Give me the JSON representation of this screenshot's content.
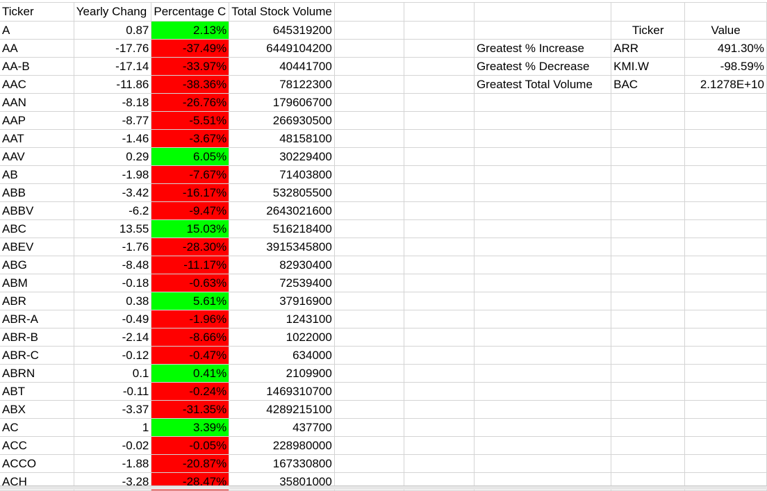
{
  "headers": {
    "ticker": "Ticker",
    "yearly_change": "Yearly Chang",
    "percent_change": "Percentage C",
    "total_volume": "Total Stock Volume"
  },
  "rows": [
    {
      "ticker": "A",
      "yearly_change": "0.87",
      "percent_change": "2.13%",
      "volume": "645319200",
      "sign": "pos"
    },
    {
      "ticker": "AA",
      "yearly_change": "-17.76",
      "percent_change": "-37.49%",
      "volume": "6449104200",
      "sign": "neg"
    },
    {
      "ticker": "AA-B",
      "yearly_change": "-17.14",
      "percent_change": "-33.97%",
      "volume": "40441700",
      "sign": "neg"
    },
    {
      "ticker": "AAC",
      "yearly_change": "-11.86",
      "percent_change": "-38.36%",
      "volume": "78122300",
      "sign": "neg"
    },
    {
      "ticker": "AAN",
      "yearly_change": "-8.18",
      "percent_change": "-26.76%",
      "volume": "179606700",
      "sign": "neg"
    },
    {
      "ticker": "AAP",
      "yearly_change": "-8.77",
      "percent_change": "-5.51%",
      "volume": "266930500",
      "sign": "neg"
    },
    {
      "ticker": "AAT",
      "yearly_change": "-1.46",
      "percent_change": "-3.67%",
      "volume": "48158100",
      "sign": "neg"
    },
    {
      "ticker": "AAV",
      "yearly_change": "0.29",
      "percent_change": "6.05%",
      "volume": "30229400",
      "sign": "pos"
    },
    {
      "ticker": "AB",
      "yearly_change": "-1.98",
      "percent_change": "-7.67%",
      "volume": "71403800",
      "sign": "neg"
    },
    {
      "ticker": "ABB",
      "yearly_change": "-3.42",
      "percent_change": "-16.17%",
      "volume": "532805500",
      "sign": "neg"
    },
    {
      "ticker": "ABBV",
      "yearly_change": "-6.2",
      "percent_change": "-9.47%",
      "volume": "2643021600",
      "sign": "neg"
    },
    {
      "ticker": "ABC",
      "yearly_change": "13.55",
      "percent_change": "15.03%",
      "volume": "516218400",
      "sign": "pos"
    },
    {
      "ticker": "ABEV",
      "yearly_change": "-1.76",
      "percent_change": "-28.30%",
      "volume": "3915345800",
      "sign": "neg"
    },
    {
      "ticker": "ABG",
      "yearly_change": "-8.48",
      "percent_change": "-11.17%",
      "volume": "82930400",
      "sign": "neg"
    },
    {
      "ticker": "ABM",
      "yearly_change": "-0.18",
      "percent_change": "-0.63%",
      "volume": "72539400",
      "sign": "neg"
    },
    {
      "ticker": "ABR",
      "yearly_change": "0.38",
      "percent_change": "5.61%",
      "volume": "37916900",
      "sign": "pos"
    },
    {
      "ticker": "ABR-A",
      "yearly_change": "-0.49",
      "percent_change": "-1.96%",
      "volume": "1243100",
      "sign": "neg"
    },
    {
      "ticker": "ABR-B",
      "yearly_change": "-2.14",
      "percent_change": "-8.66%",
      "volume": "1022000",
      "sign": "neg"
    },
    {
      "ticker": "ABR-C",
      "yearly_change": "-0.12",
      "percent_change": "-0.47%",
      "volume": "634000",
      "sign": "neg"
    },
    {
      "ticker": "ABRN",
      "yearly_change": "0.1",
      "percent_change": "0.41%",
      "volume": "2109900",
      "sign": "pos"
    },
    {
      "ticker": "ABT",
      "yearly_change": "-0.11",
      "percent_change": "-0.24%",
      "volume": "1469310700",
      "sign": "neg"
    },
    {
      "ticker": "ABX",
      "yearly_change": "-3.37",
      "percent_change": "-31.35%",
      "volume": "4289215100",
      "sign": "neg"
    },
    {
      "ticker": "AC",
      "yearly_change": "1",
      "percent_change": "3.39%",
      "volume": "437700",
      "sign": "pos"
    },
    {
      "ticker": "ACC",
      "yearly_change": "-0.02",
      "percent_change": "-0.05%",
      "volume": "228980000",
      "sign": "neg"
    },
    {
      "ticker": "ACCO",
      "yearly_change": "-1.88",
      "percent_change": "-20.87%",
      "volume": "167330800",
      "sign": "neg"
    },
    {
      "ticker": "ACH",
      "yearly_change": "-3.28",
      "percent_change": "-28.47%",
      "volume": "35801000",
      "sign": "neg"
    }
  ],
  "summary": {
    "ticker_header": "Ticker",
    "value_header": "Value",
    "rows": [
      {
        "label": "Greatest % Increase",
        "ticker": "ARR",
        "value": "491.30%"
      },
      {
        "label": "Greatest % Decrease",
        "ticker": "KMI.W",
        "value": "-98.59%"
      },
      {
        "label": "Greatest Total Volume",
        "ticker": "BAC",
        "value": "2.1278E+10"
      }
    ]
  },
  "colors": {
    "positive": "#00ff00",
    "negative": "#ff0000",
    "gridline": "#d4d4d4"
  }
}
